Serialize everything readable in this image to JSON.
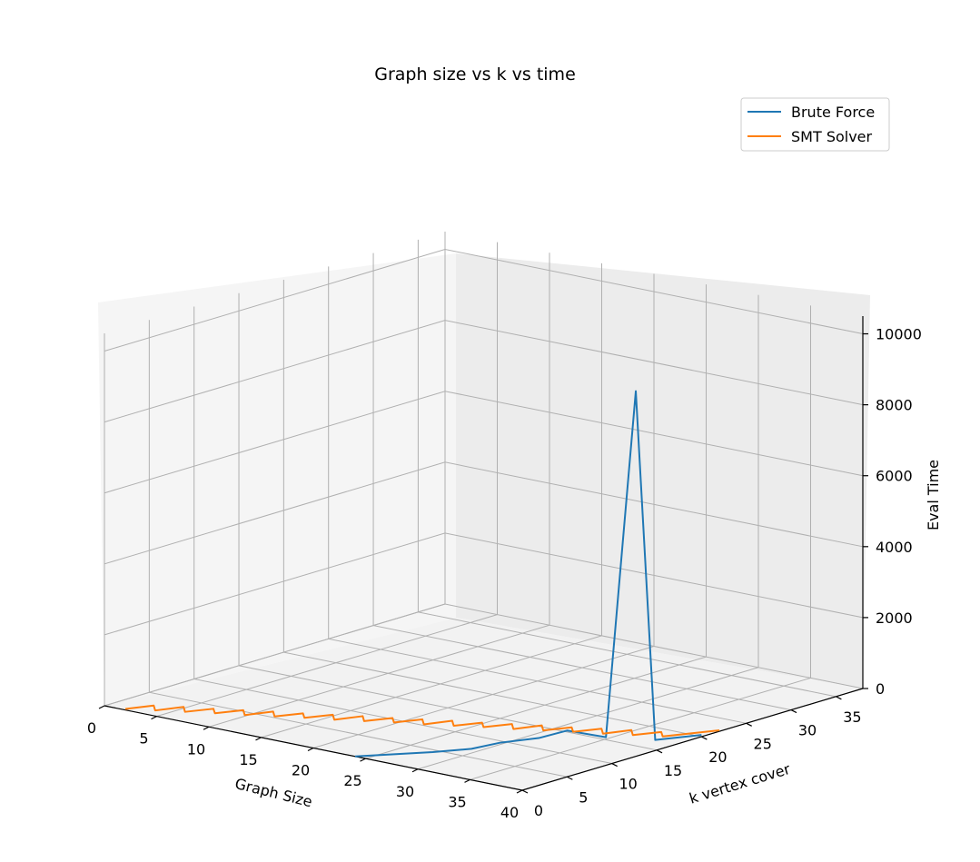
{
  "chart_data": {
    "type": "line",
    "projection": "3d",
    "title": "Graph size vs k vs time",
    "xlabel": "Graph Size",
    "ylabel": "k vertex cover",
    "zlabel": "Eval Time",
    "x_ticks": [
      "0",
      "5",
      "10",
      "15",
      "20",
      "25",
      "30",
      "35",
      "40"
    ],
    "y_ticks": [
      "0",
      "5",
      "10",
      "15",
      "20",
      "25",
      "30",
      "35"
    ],
    "z_ticks": [
      "0",
      "2000",
      "4000",
      "6000",
      "8000",
      "10000"
    ],
    "xlim": [
      0,
      40
    ],
    "ylim": [
      0,
      38
    ],
    "zlim": [
      0,
      10500
    ],
    "grid": true,
    "legend_position": "top-right",
    "series": [
      {
        "name": "Brute Force",
        "color": "#1f77b4",
        "points": [
          [
            24,
            0,
            0
          ],
          [
            26,
            2,
            30
          ],
          [
            28,
            4,
            60
          ],
          [
            30,
            6,
            120
          ],
          [
            31,
            8,
            200
          ],
          [
            33,
            10,
            300
          ],
          [
            34,
            12,
            420
          ],
          [
            36,
            14,
            200
          ],
          [
            38,
            15,
            10000
          ],
          [
            39,
            16,
            150
          ],
          [
            40,
            20,
            50
          ]
        ]
      },
      {
        "name": "SMT Solver",
        "color": "#ff7f0e",
        "points": [
          [
            2,
            0,
            30
          ],
          [
            3,
            2,
            35
          ],
          [
            4,
            1,
            30
          ],
          [
            5,
            3,
            40
          ],
          [
            6,
            2,
            35
          ],
          [
            7,
            4,
            30
          ],
          [
            8,
            3,
            40
          ],
          [
            9,
            5,
            35
          ],
          [
            10,
            4,
            30
          ],
          [
            11,
            6,
            40
          ],
          [
            12,
            5,
            35
          ],
          [
            13,
            7,
            30
          ],
          [
            14,
            6,
            40
          ],
          [
            15,
            8,
            35
          ],
          [
            16,
            7,
            30
          ],
          [
            17,
            9,
            40
          ],
          [
            18,
            8,
            35
          ],
          [
            19,
            10,
            30
          ],
          [
            20,
            9,
            40
          ],
          [
            21,
            11,
            35
          ],
          [
            22,
            10,
            30
          ],
          [
            23,
            12,
            40
          ],
          [
            24,
            11,
            35
          ],
          [
            25,
            13,
            30
          ],
          [
            26,
            12,
            40
          ],
          [
            27,
            14,
            35
          ],
          [
            28,
            13,
            30
          ],
          [
            29,
            15,
            40
          ],
          [
            30,
            14,
            35
          ],
          [
            31,
            16,
            30
          ],
          [
            32,
            15,
            40
          ],
          [
            33,
            17,
            35
          ],
          [
            34,
            16,
            30
          ],
          [
            35,
            18,
            40
          ],
          [
            36,
            17,
            35
          ],
          [
            37,
            19,
            30
          ],
          [
            38,
            18,
            40
          ],
          [
            39,
            20,
            35
          ],
          [
            40,
            22,
            30
          ]
        ]
      }
    ]
  }
}
